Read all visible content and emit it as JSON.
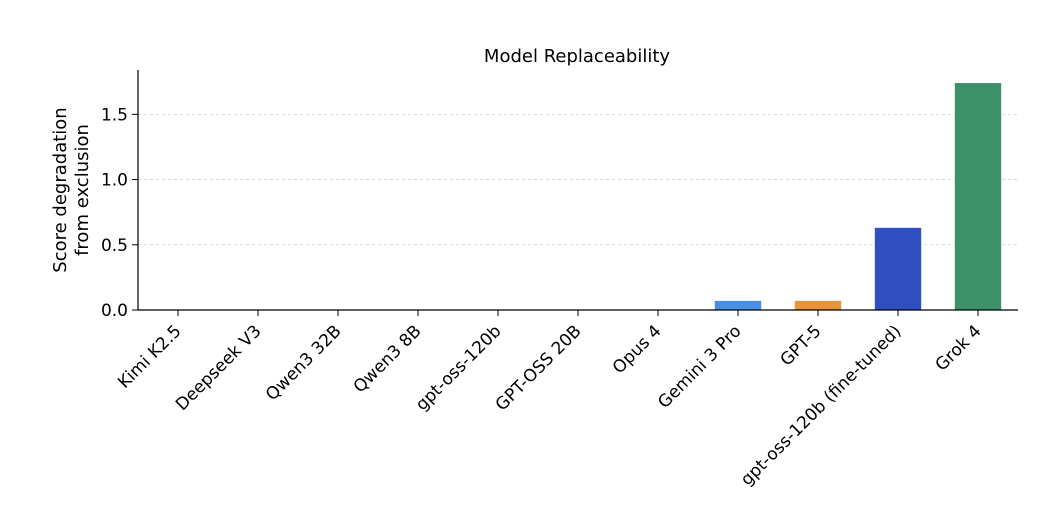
{
  "chart_data": {
    "type": "bar",
    "title": "Model Replaceability",
    "xlabel": "",
    "ylabel_lines": [
      "Score degradation",
      "from exclusion"
    ],
    "categories": [
      "Kimi K2.5",
      "Deepseek V3",
      "Qwen3 32B",
      "Qwen3 8B",
      "gpt-oss-120b",
      "GPT-OSS 20B",
      "Opus 4",
      "Gemini 3 Pro",
      "GPT-5",
      "gpt-oss-120b (fine-tuned)",
      "Grok 4"
    ],
    "values": [
      0,
      0,
      0,
      0,
      0,
      0,
      0,
      0.07,
      0.07,
      0.63,
      1.74
    ],
    "colors": [
      "#4a8fe0",
      "#4a8fe0",
      "#4a8fe0",
      "#4a8fe0",
      "#4a8fe0",
      "#4a8fe0",
      "#4a8fe0",
      "#4a8fe0",
      "#e8923a",
      "#304fbf",
      "#3c9169"
    ],
    "ylim": [
      0,
      1.84
    ],
    "yticks": [
      0.0,
      0.5,
      1.0,
      1.5
    ],
    "ytick_labels": [
      "0.0",
      "0.5",
      "1.0",
      "1.5"
    ],
    "grid": "horizontal-dashed",
    "legend": "none"
  }
}
